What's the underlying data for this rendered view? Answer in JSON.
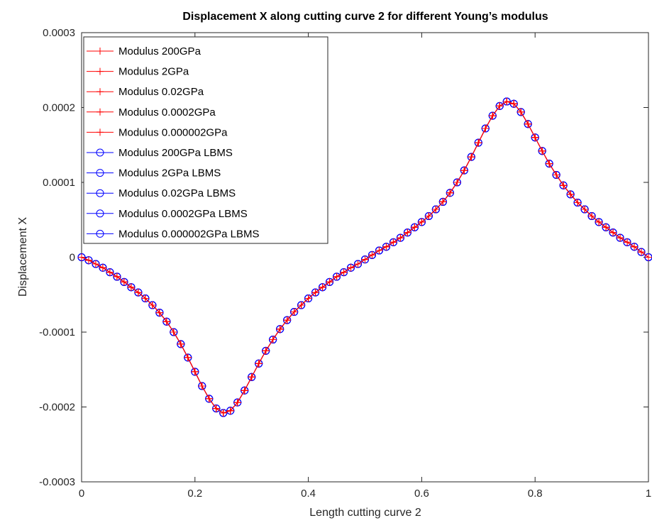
{
  "chart_data": {
    "type": "line",
    "title": "Displacement X along cutting curve 2 for different Young’s modulus",
    "xlabel": "Length cutting curve 2",
    "ylabel": "Displacement X",
    "xlim": [
      0,
      1
    ],
    "ylim": [
      -0.0003,
      0.0003
    ],
    "x_ticks": [
      0,
      0.2,
      0.4,
      0.6,
      0.8,
      1
    ],
    "x_tick_labels": [
      "0",
      "0.2",
      "0.4",
      "0.6",
      "0.8",
      "1"
    ],
    "y_ticks": [
      -0.0003,
      -0.0002,
      -0.0001,
      0,
      0.0001,
      0.0002,
      0.0003
    ],
    "y_tick_labels": [
      "-0.0003",
      "-0.0002",
      "-0.0001",
      "0",
      "0.0001",
      "0.0002",
      "0.0003"
    ],
    "grid": false,
    "legend_position": "top-left",
    "colors": {
      "red_series": "#ff0000",
      "blue_series": "#0000ff",
      "axis": "#262626"
    },
    "x": [
      0,
      0.0125,
      0.025,
      0.0375,
      0.05,
      0.0625,
      0.075,
      0.0875,
      0.1,
      0.1125,
      0.125,
      0.1375,
      0.15,
      0.1625,
      0.175,
      0.1875,
      0.2,
      0.2125,
      0.225,
      0.2375,
      0.25,
      0.2625,
      0.275,
      0.2875,
      0.3,
      0.3125,
      0.325,
      0.3375,
      0.35,
      0.3625,
      0.375,
      0.3875,
      0.4,
      0.4125,
      0.425,
      0.4375,
      0.45,
      0.4625,
      0.475,
      0.4875,
      0.5,
      0.5125,
      0.525,
      0.5375,
      0.55,
      0.5625,
      0.575,
      0.5875,
      0.6,
      0.6125,
      0.625,
      0.6375,
      0.65,
      0.6625,
      0.675,
      0.6875,
      0.7,
      0.7125,
      0.725,
      0.7375,
      0.75,
      0.7625,
      0.775,
      0.7875,
      0.8,
      0.8125,
      0.825,
      0.8375,
      0.85,
      0.8625,
      0.875,
      0.8875,
      0.9,
      0.9125,
      0.925,
      0.9375,
      0.95,
      0.9625,
      0.975,
      0.9875,
      1
    ],
    "y": [
      0,
      -4e-06,
      -9e-06,
      -1.4e-05,
      -2e-05,
      -2.6e-05,
      -3.3e-05,
      -4e-05,
      -4.7e-05,
      -5.5e-05,
      -6.4e-05,
      -7.4e-05,
      -8.6e-05,
      -0.0001,
      -0.000116,
      -0.000134,
      -0.000153,
      -0.000172,
      -0.000189,
      -0.000202,
      -0.000208,
      -0.000205,
      -0.000194,
      -0.000178,
      -0.00016,
      -0.000142,
      -0.000125,
      -0.00011,
      -9.6e-05,
      -8.4e-05,
      -7.3e-05,
      -6.4e-05,
      -5.5e-05,
      -4.7e-05,
      -4e-05,
      -3.3e-05,
      -2.6e-05,
      -2e-05,
      -1.4e-05,
      -9e-06,
      -3e-06,
      3e-06,
      9e-06,
      1.4e-05,
      2e-05,
      2.6e-05,
      3.3e-05,
      4e-05,
      4.7e-05,
      5.5e-05,
      6.4e-05,
      7.4e-05,
      8.6e-05,
      0.0001,
      0.000116,
      0.000134,
      0.000153,
      0.000172,
      0.000189,
      0.000202,
      0.000208,
      0.000205,
      0.000194,
      0.000178,
      0.00016,
      0.000142,
      0.000125,
      0.00011,
      9.6e-05,
      8.4e-05,
      7.3e-05,
      6.4e-05,
      5.5e-05,
      4.7e-05,
      4e-05,
      3.3e-05,
      2.6e-05,
      2e-05,
      1.4e-05,
      7e-06,
      0
    ],
    "series": [
      {
        "name": "Modulus 200GPa",
        "color": "#ff0000",
        "marker": "+",
        "marker_every": 1,
        "offset": 0
      },
      {
        "name": "Modulus 2GPa",
        "color": "#ff0000",
        "marker": "+",
        "marker_every": 1,
        "offset": 0
      },
      {
        "name": "Modulus 0.02GPa",
        "color": "#ff0000",
        "marker": "+",
        "marker_every": 1,
        "offset": 0
      },
      {
        "name": "Modulus 0.0002GPa",
        "color": "#ff0000",
        "marker": "+",
        "marker_every": 1,
        "offset": 0
      },
      {
        "name": "Modulus 0.000002GPa",
        "color": "#ff0000",
        "marker": "+",
        "marker_every": 1,
        "offset": 0
      },
      {
        "name": "Modulus 200GPa LBMS",
        "color": "#0000ff",
        "marker": "o",
        "marker_every": 1,
        "offset": 0
      },
      {
        "name": "Modulus 2GPa LBMS",
        "color": "#0000ff",
        "marker": "o",
        "marker_every": 1,
        "offset": 0
      },
      {
        "name": "Modulus 0.02GPa LBMS",
        "color": "#0000ff",
        "marker": "o",
        "marker_every": 1,
        "offset": 0
      },
      {
        "name": "Modulus 0.0002GPa LBMS",
        "color": "#0000ff",
        "marker": "o",
        "marker_every": 1,
        "offset": 0
      },
      {
        "name": "Modulus 0.000002GPa LBMS",
        "color": "#0000ff",
        "marker": "o",
        "marker_every": 1,
        "offset": 0
      }
    ]
  }
}
